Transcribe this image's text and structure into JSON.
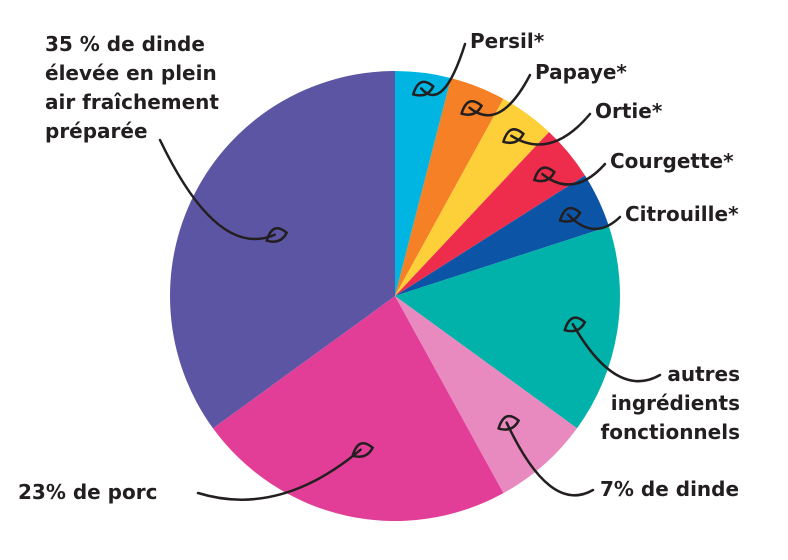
{
  "chart_data": {
    "type": "pie",
    "categories": [
      "Persil*",
      "Papaye*",
      "Ortie*",
      "Courgette*",
      "Citrouille*",
      "autres\ningrédients\nfonctionnels",
      "7% de dinde",
      "23% de porc",
      "35 % de dinde\nélevée en plein\nair fraîchement\npréparée"
    ],
    "values": [
      4,
      4,
      4,
      4,
      4,
      15,
      7,
      23,
      35
    ],
    "colors": [
      "#00b5e2",
      "#f58025",
      "#fdd03a",
      "#ee2d4d",
      "#0c55a6",
      "#00b2a9",
      "#e88abf",
      "#e23e98",
      "#5b55a3"
    ]
  }
}
